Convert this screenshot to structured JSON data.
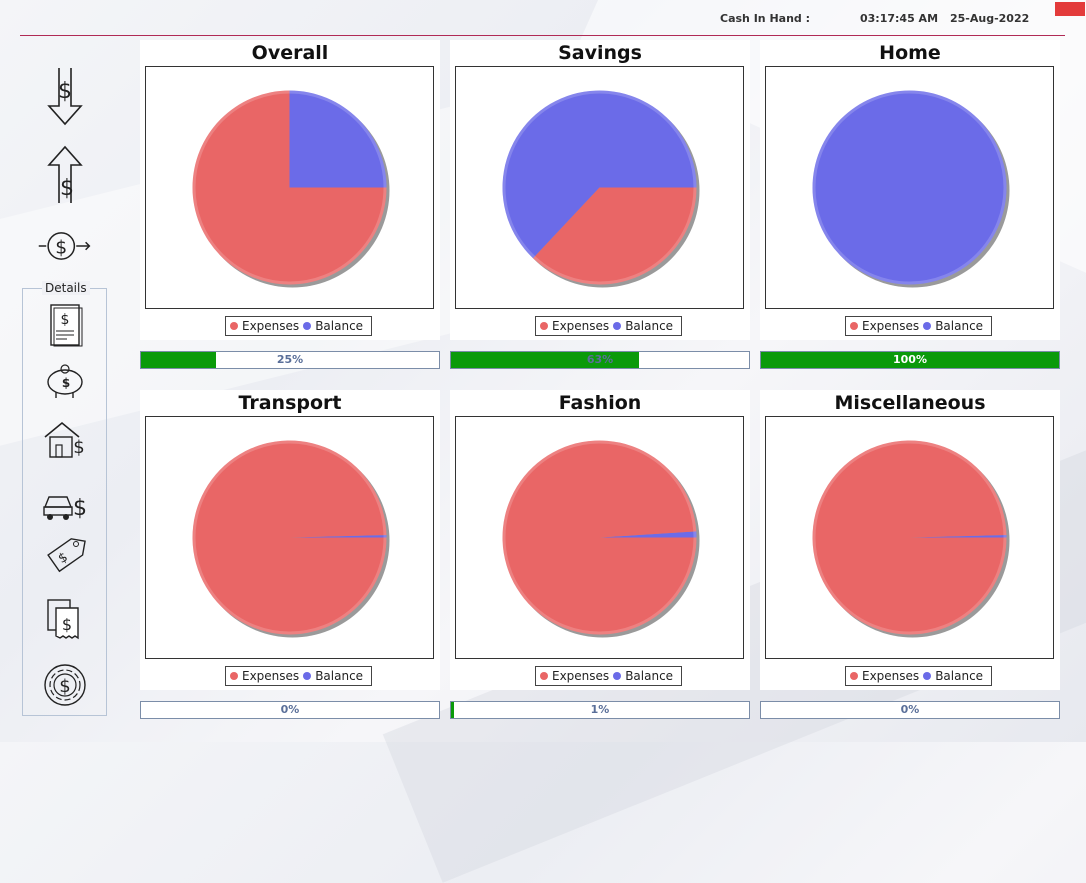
{
  "header": {
    "cash_label": "Cash In Hand :",
    "cash_value": "",
    "time": "03:17:45 AM",
    "date": "25-Aug-2022"
  },
  "sidebar": {
    "items": [
      {
        "name": "expense-icon"
      },
      {
        "name": "income-icon"
      },
      {
        "name": "transfer-icon"
      }
    ],
    "details_title": "Details",
    "details_items": [
      {
        "name": "bill-icon"
      },
      {
        "name": "piggy-bank-icon"
      },
      {
        "name": "home-money-icon"
      },
      {
        "name": "car-money-icon"
      },
      {
        "name": "price-tag-icon"
      },
      {
        "name": "receipts-icon"
      },
      {
        "name": "coin-target-icon"
      }
    ]
  },
  "legend": {
    "expenses": "Expenses",
    "balance": "Balance"
  },
  "colors": {
    "expenses": "#e96666",
    "balance": "#6b6be8",
    "progress": "#0a9a0a"
  },
  "panels": [
    {
      "title": "Overall",
      "progress_text": "25%"
    },
    {
      "title": "Savings",
      "progress_text": "63%"
    },
    {
      "title": "Home",
      "progress_text": "100%"
    },
    {
      "title": "Transport",
      "progress_text": "0%"
    },
    {
      "title": "Fashion",
      "progress_text": "1%"
    },
    {
      "title": "Miscellaneous",
      "progress_text": "0%"
    }
  ],
  "chart_data": [
    {
      "type": "pie",
      "title": "Overall",
      "labels": [
        "Expenses",
        "Balance"
      ],
      "values": [
        75,
        25
      ],
      "progress": 0.25
    },
    {
      "type": "pie",
      "title": "Savings",
      "labels": [
        "Expenses",
        "Balance"
      ],
      "values": [
        37,
        63
      ],
      "progress": 0.63
    },
    {
      "type": "pie",
      "title": "Home",
      "labels": [
        "Expenses",
        "Balance"
      ],
      "values": [
        0,
        100
      ],
      "progress": 1.0
    },
    {
      "type": "pie",
      "title": "Transport",
      "labels": [
        "Expenses",
        "Balance"
      ],
      "values": [
        99.6,
        0.4
      ],
      "progress": 0.0
    },
    {
      "type": "pie",
      "title": "Fashion",
      "labels": [
        "Expenses",
        "Balance"
      ],
      "values": [
        99,
        1
      ],
      "progress": 0.01
    },
    {
      "type": "pie",
      "title": "Miscellaneous",
      "labels": [
        "Expenses",
        "Balance"
      ],
      "values": [
        99.6,
        0.4
      ],
      "progress": 0.0
    }
  ]
}
